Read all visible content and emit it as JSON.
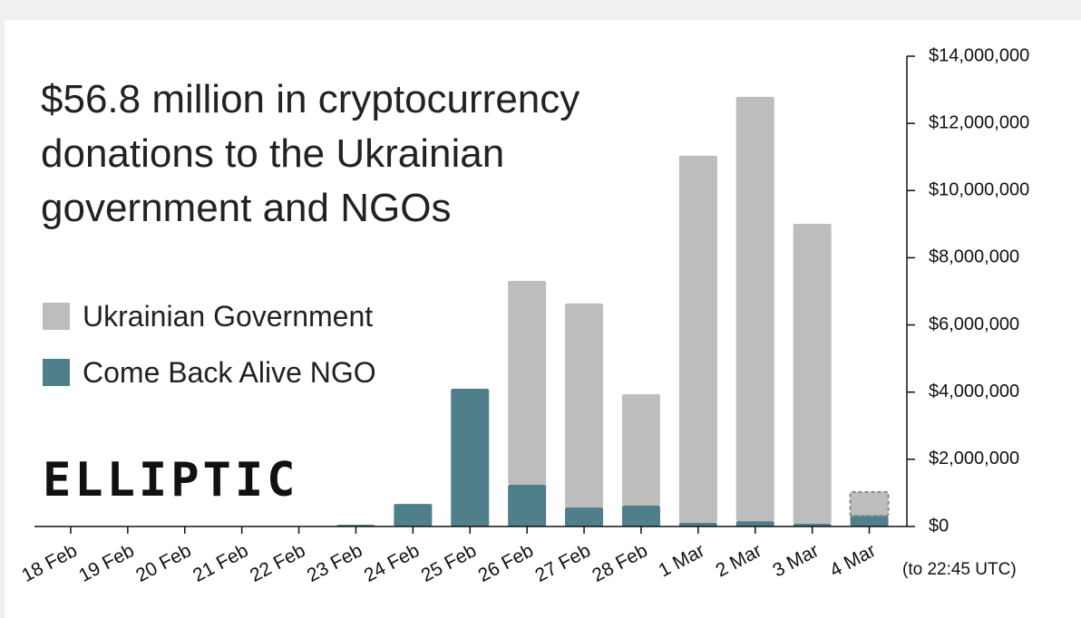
{
  "chart_data": {
    "type": "bar",
    "stacked": true,
    "title": "$56.8 million in cryptocurrency donations to the Ukrainian government and NGOs",
    "logo": "ELLIPTIC",
    "annotation": "(to 22:45 UTC)",
    "categories": [
      "18 Feb",
      "19 Feb",
      "20 Feb",
      "21 Feb",
      "22 Feb",
      "23 Feb",
      "24 Feb",
      "25 Feb",
      "26 Feb",
      "27 Feb",
      "28 Feb",
      "1 Mar",
      "2 Mar",
      "3 Mar",
      "4 Mar"
    ],
    "series": [
      {
        "name": "Ukrainian Government",
        "color": "#bdbdbd",
        "values": [
          0,
          0,
          0,
          0,
          0,
          0,
          0,
          0,
          6070000,
          6070000,
          3320000,
          10930000,
          12630000,
          8930000,
          710000
        ]
      },
      {
        "name": "Come Back Alive NGO",
        "color": "#4e7f8b",
        "values": [
          10000,
          10000,
          10000,
          10000,
          10000,
          50000,
          670000,
          4100000,
          1240000,
          570000,
          620000,
          110000,
          160000,
          80000,
          320000
        ]
      }
    ],
    "ylim": [
      0,
      14000000
    ],
    "yticks": [
      {
        "value": 0,
        "label": "$0"
      },
      {
        "value": 2000000,
        "label": "$2,000,000"
      },
      {
        "value": 4000000,
        "label": "$4,000,000"
      },
      {
        "value": 6000000,
        "label": "$6,000,000"
      },
      {
        "value": 8000000,
        "label": "$8,000,000"
      },
      {
        "value": 10000000,
        "label": "$10,000,000"
      },
      {
        "value": 12000000,
        "label": "$12,000,000"
      },
      {
        "value": 14000000,
        "label": "$14,000,000"
      }
    ],
    "y_axis_side": "right"
  }
}
